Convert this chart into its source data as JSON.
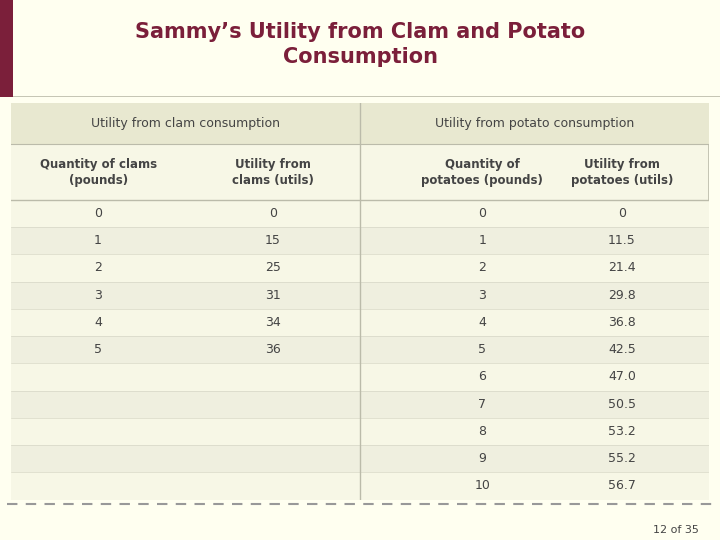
{
  "title": "Sammy’s Utility from Clam and Potato\nConsumption",
  "title_color": "#7B1F3A",
  "bg_color": "#FFFFF0",
  "slide_number": "12 of 35",
  "clam_section_header": "Utility from clam consumption",
  "potato_section_header": "Utility from potato consumption",
  "clam_col1_header": "Quantity of clams\n(pounds)",
  "clam_col2_header": "Utility from\nclams (utils)",
  "potato_col1_header": "Quantity of\npotatoes (pounds)",
  "potato_col2_header": "Utility from\npotatoes (utils)",
  "clam_qty": [
    "0",
    "1",
    "2",
    "3",
    "4",
    "5"
  ],
  "clam_util": [
    "0",
    "15",
    "25",
    "31",
    "34",
    "36"
  ],
  "potato_qty": [
    "0",
    "1",
    "2",
    "3",
    "4",
    "5",
    "6",
    "7",
    "8",
    "9",
    "10"
  ],
  "potato_util": [
    "0",
    "11.5",
    "21.4",
    "29.8",
    "36.8",
    "42.5",
    "47.0",
    "50.5",
    "53.2",
    "55.2",
    "56.7"
  ],
  "table_bg": "#F7F7E6",
  "header_bg": "#E8E8D0",
  "border_color": "#BBBBAA",
  "text_color": "#444444",
  "accent_color": "#7B1F3A",
  "divider_color": "#CCCCBB",
  "dash_color": "#999999",
  "title_fontsize": 15,
  "section_fontsize": 9,
  "col_hdr_fontsize": 8.5,
  "data_fontsize": 9,
  "slide_num_fontsize": 8
}
